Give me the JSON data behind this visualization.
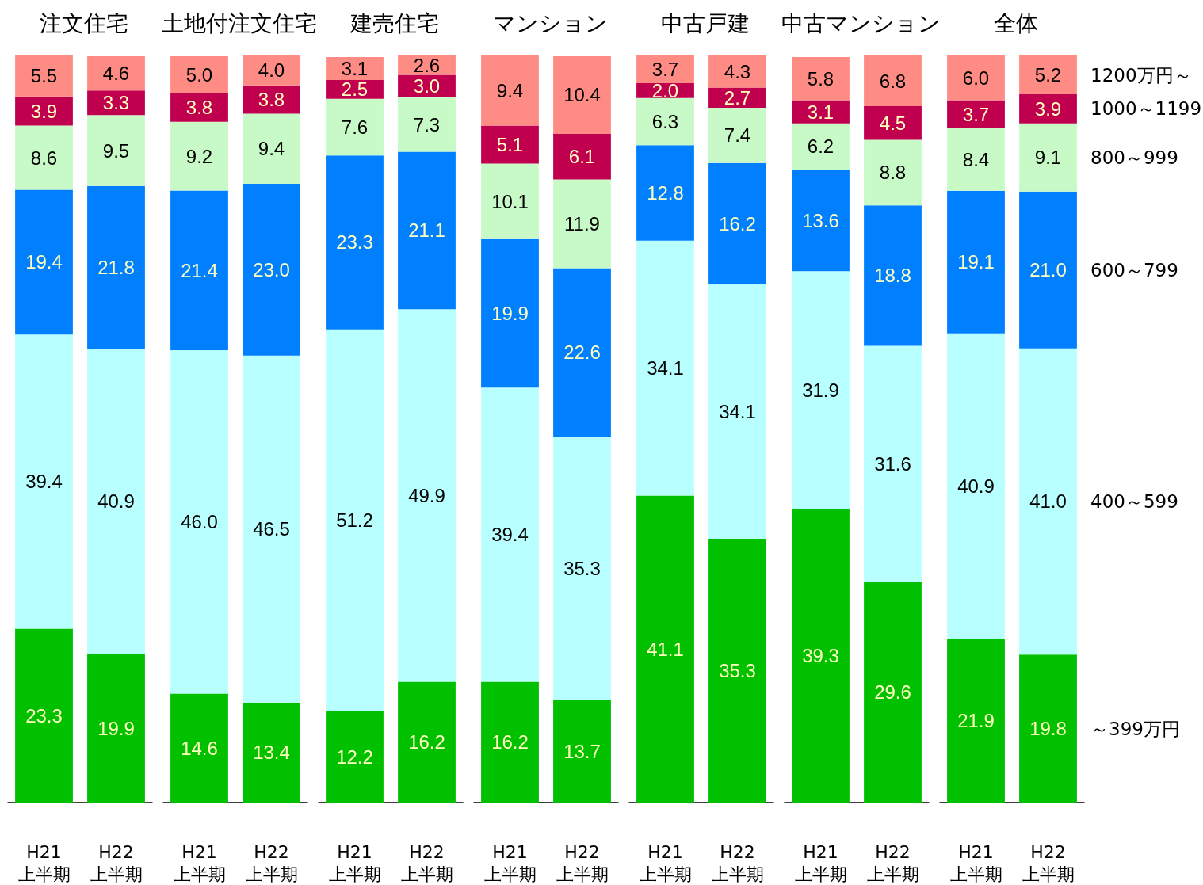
{
  "chart_data": [
    {
      "type": "bar",
      "title": "注文住宅",
      "categories": [
        "H21\n上半期",
        "H22\n上半期"
      ],
      "stacked": true,
      "tick_labels": "x",
      "series": [
        {
          "color": "#00c000",
          "values": [
            23.3,
            19.9
          ],
          "value_labels": [
            "23.3",
            "19.9"
          ]
        },
        {
          "color": "#b8ffff",
          "values": [
            39.4,
            40.9
          ],
          "value_labels": [
            "39.4",
            "40.9"
          ]
        },
        {
          "color": "#0080ff",
          "values": [
            19.4,
            21.8
          ],
          "value_labels": [
            "19.4",
            "21.8"
          ]
        },
        {
          "color": "#c8fac8",
          "values": [
            8.6,
            9.5
          ],
          "value_labels": [
            "8.6",
            "9.5"
          ]
        },
        {
          "color": "#c0004f",
          "values": [
            3.9,
            3.3
          ],
          "value_labels": [
            "3.9",
            "3.3"
          ]
        },
        {
          "color": "#ff8c84",
          "values": [
            5.5,
            4.6
          ],
          "value_labels": [
            "5.5",
            "4.6"
          ]
        }
      ]
    },
    {
      "type": "bar",
      "title": "土地付注文住宅",
      "categories": [
        "H21\n上半期",
        "H22\n上半期"
      ],
      "stacked": true,
      "tick_labels": "x",
      "series": [
        {
          "color": "#00c000",
          "values": [
            14.6,
            13.4
          ],
          "value_labels": [
            "14.6",
            "13.4"
          ]
        },
        {
          "color": "#b8ffff",
          "values": [
            46.0,
            46.5
          ],
          "value_labels": [
            "46.0",
            "46.5"
          ]
        },
        {
          "color": "#0080ff",
          "values": [
            21.4,
            23.0
          ],
          "value_labels": [
            "21.4",
            "23.0"
          ]
        },
        {
          "color": "#c8fac8",
          "values": [
            9.2,
            9.4
          ],
          "value_labels": [
            "9.2",
            "9.4"
          ]
        },
        {
          "color": "#c0004f",
          "values": [
            3.8,
            3.8
          ],
          "value_labels": [
            "3.8",
            "3.8"
          ]
        },
        {
          "color": "#ff8c84",
          "values": [
            5.0,
            4.0
          ],
          "value_labels": [
            "5.0",
            "4.0"
          ]
        }
      ]
    },
    {
      "type": "bar",
      "title": "建売住宅",
      "categories": [
        "H21\n上半期",
        "H22\n上半期"
      ],
      "stacked": true,
      "tick_labels": "x",
      "series": [
        {
          "color": "#00c000",
          "values": [
            12.2,
            16.2
          ],
          "value_labels": [
            "12.2",
            "16.2"
          ]
        },
        {
          "color": "#b8ffff",
          "values": [
            51.2,
            49.9
          ],
          "value_labels": [
            "51.2",
            "49.9"
          ]
        },
        {
          "color": "#0080ff",
          "values": [
            23.3,
            21.1
          ],
          "value_labels": [
            "23.3",
            "21.1"
          ]
        },
        {
          "color": "#c8fac8",
          "values": [
            7.6,
            7.3
          ],
          "value_labels": [
            "7.6",
            "7.3"
          ]
        },
        {
          "color": "#c0004f",
          "values": [
            2.5,
            3.0
          ],
          "value_labels": [
            "2.5",
            "3.0"
          ]
        },
        {
          "color": "#ff8c84",
          "values": [
            3.1,
            2.6
          ],
          "value_labels": [
            "3.1",
            "2.6"
          ]
        }
      ]
    },
    {
      "type": "bar",
      "title": "マンション",
      "categories": [
        "H21\n上半期",
        "H22\n上半期"
      ],
      "stacked": true,
      "tick_labels": "x",
      "series": [
        {
          "color": "#00c000",
          "values": [
            16.2,
            13.7
          ],
          "value_labels": [
            "16.2",
            "13.7"
          ]
        },
        {
          "color": "#b8ffff",
          "values": [
            39.4,
            35.3
          ],
          "value_labels": [
            "39.4",
            "35.3"
          ]
        },
        {
          "color": "#0080ff",
          "values": [
            19.9,
            22.6
          ],
          "value_labels": [
            "19.9",
            "22.6"
          ]
        },
        {
          "color": "#c8fac8",
          "values": [
            10.1,
            11.9
          ],
          "value_labels": [
            "10.1",
            "11.9"
          ]
        },
        {
          "color": "#c0004f",
          "values": [
            5.1,
            6.1
          ],
          "value_labels": [
            "5.1",
            "6.1"
          ]
        },
        {
          "color": "#ff8c84",
          "values": [
            9.4,
            10.4
          ],
          "value_labels": [
            "9.4",
            "10.4"
          ]
        }
      ]
    },
    {
      "type": "bar",
      "title": "中古戸建",
      "categories": [
        "H21\n上半期",
        "H22\n上半期"
      ],
      "stacked": true,
      "tick_labels": "x",
      "series": [
        {
          "color": "#00c000",
          "values": [
            41.1,
            35.3
          ],
          "value_labels": [
            "41.1",
            "35.3"
          ]
        },
        {
          "color": "#b8ffff",
          "values": [
            34.1,
            34.1
          ],
          "value_labels": [
            "34.1",
            "34.1"
          ]
        },
        {
          "color": "#0080ff",
          "values": [
            12.8,
            16.2
          ],
          "value_labels": [
            "12.8",
            "16.2"
          ]
        },
        {
          "color": "#c8fac8",
          "values": [
            6.3,
            7.4
          ],
          "value_labels": [
            "6.3",
            "7.4"
          ]
        },
        {
          "color": "#c0004f",
          "values": [
            2.0,
            2.7
          ],
          "value_labels": [
            "2.0",
            "2.7"
          ]
        },
        {
          "color": "#ff8c84",
          "values": [
            3.7,
            4.3
          ],
          "value_labels": [
            "3.7",
            "4.3"
          ]
        }
      ]
    },
    {
      "type": "bar",
      "title": "中古マンション",
      "categories": [
        "H21\n上半期",
        "H22\n上半期"
      ],
      "stacked": true,
      "tick_labels": "x",
      "series": [
        {
          "color": "#00c000",
          "values": [
            39.3,
            29.6
          ],
          "value_labels": [
            "39.3",
            "29.6"
          ]
        },
        {
          "color": "#b8ffff",
          "values": [
            31.9,
            31.6
          ],
          "value_labels": [
            "31.9",
            "31.6"
          ]
        },
        {
          "color": "#0080ff",
          "values": [
            13.6,
            18.8
          ],
          "value_labels": [
            "13.6",
            "18.8"
          ]
        },
        {
          "color": "#c8fac8",
          "values": [
            6.2,
            8.8
          ],
          "value_labels": [
            "6.2",
            "8.8"
          ]
        },
        {
          "color": "#c0004f",
          "values": [
            3.1,
            4.5
          ],
          "value_labels": [
            "3.1",
            "4.5"
          ]
        },
        {
          "color": "#ff8c84",
          "values": [
            5.8,
            6.8
          ],
          "value_labels": [
            "5.8",
            "6.8"
          ]
        }
      ]
    },
    {
      "type": "bar",
      "title": "全体",
      "categories": [
        "H21\n上半期",
        "H22\n上半期"
      ],
      "stacked": true,
      "tick_labels": "x",
      "series": [
        {
          "name": "～399万円",
          "color": "#00c000",
          "values": [
            21.9,
            19.8
          ],
          "value_labels": [
            "21.9",
            "19.8"
          ]
        },
        {
          "name": "400～599",
          "color": "#b8ffff",
          "values": [
            40.9,
            41.0
          ],
          "value_labels": [
            "40.9",
            "41.0"
          ]
        },
        {
          "name": "600～799",
          "color": "#0080ff",
          "values": [
            19.1,
            21.0
          ],
          "value_labels": [
            "19.1",
            "21.0"
          ]
        },
        {
          "name": "800～999",
          "color": "#c8fac8",
          "values": [
            8.4,
            9.1
          ],
          "value_labels": [
            "8.4",
            "9.1"
          ]
        },
        {
          "name": "1000～1199",
          "color": "#c0004f",
          "values": [
            3.7,
            3.9
          ],
          "value_labels": [
            "3.7",
            "3.9"
          ]
        },
        {
          "name": "1200万円～",
          "color": "#ff8c84",
          "values": [
            6.0,
            5.2
          ],
          "value_labels": [
            "6.0",
            "5.2"
          ]
        }
      ]
    }
  ]
}
